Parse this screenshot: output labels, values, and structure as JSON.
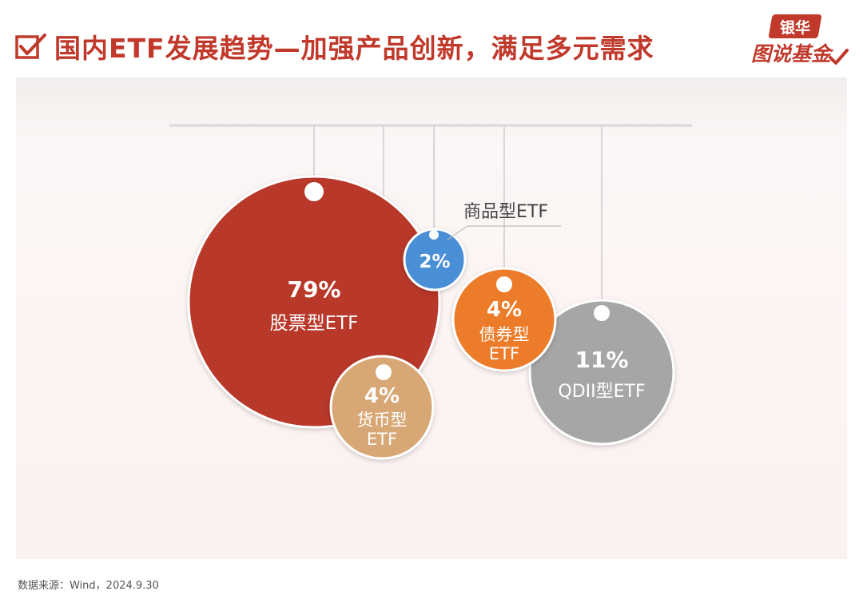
{
  "header": {
    "title": "国内ETF发展趋势—加强产品创新，满足多元需求",
    "brand_top": "银华",
    "brand_main": "图说基金",
    "brand_color": "#c0392b"
  },
  "chart_data": {
    "type": "bubble",
    "title": "",
    "series": [
      {
        "label": "股票型ETF",
        "value": "79%",
        "color": "#b8392c"
      },
      {
        "label": "QDII型ETF",
        "value": "11%",
        "color": "#a6a6a6"
      },
      {
        "label": "债券型ETF",
        "value": "4%",
        "color": "#ec7b2c"
      },
      {
        "label": "货币型ETF",
        "value": "4%",
        "color": "#d7a775"
      },
      {
        "label": "商品型ETF",
        "value": "2%",
        "color": "#4a8fd6"
      }
    ]
  },
  "footer": {
    "source": "数据来源：Wind，2024.9.30"
  }
}
